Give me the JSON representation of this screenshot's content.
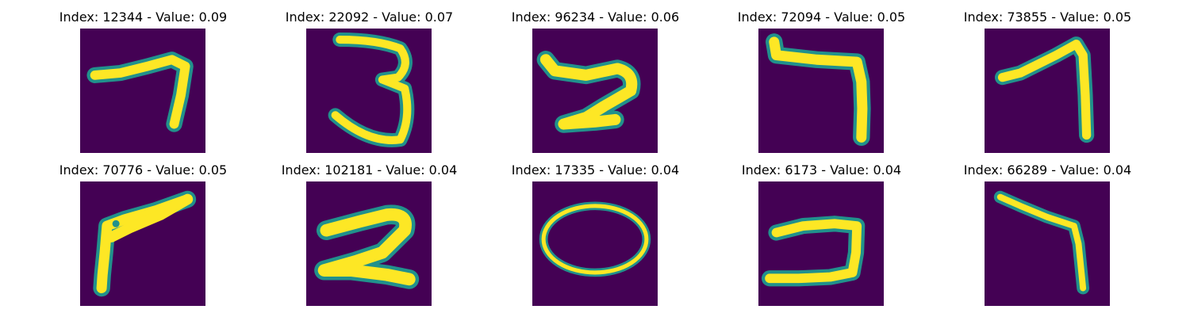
{
  "figure": {
    "colormap": "viridis",
    "background_color": "#440154",
    "stroke_color": "#fde725",
    "edge_color": "#21918c",
    "panels": [
      {
        "title": "Index: 12344 - Value: 0.09",
        "index": 12344,
        "value": 0.09,
        "depicts": "7"
      },
      {
        "title": "Index: 22092 - Value: 0.07",
        "index": 22092,
        "value": 0.07,
        "depicts": "3"
      },
      {
        "title": "Index: 96234 - Value: 0.06",
        "index": 96234,
        "value": 0.06,
        "depicts": "2"
      },
      {
        "title": "Index: 72094 - Value: 0.05",
        "index": 72094,
        "value": 0.05,
        "depicts": "7"
      },
      {
        "title": "Index: 73855 - Value: 0.05",
        "index": 73855,
        "value": 0.05,
        "depicts": "7"
      },
      {
        "title": "Index: 70776 - Value: 0.05",
        "index": 70776,
        "value": 0.05,
        "depicts": "7"
      },
      {
        "title": "Index: 102181 - Value: 0.04",
        "index": 102181,
        "value": 0.04,
        "depicts": "2"
      },
      {
        "title": "Index: 17335 - Value: 0.04",
        "index": 17335,
        "value": 0.04,
        "depicts": "0"
      },
      {
        "title": "Index: 6173 - Value: 0.04",
        "index": 6173,
        "value": 0.04,
        "depicts": "7"
      },
      {
        "title": "Index: 66289 - Value: 0.04",
        "index": 66289,
        "value": 0.04,
        "depicts": "7"
      }
    ]
  }
}
